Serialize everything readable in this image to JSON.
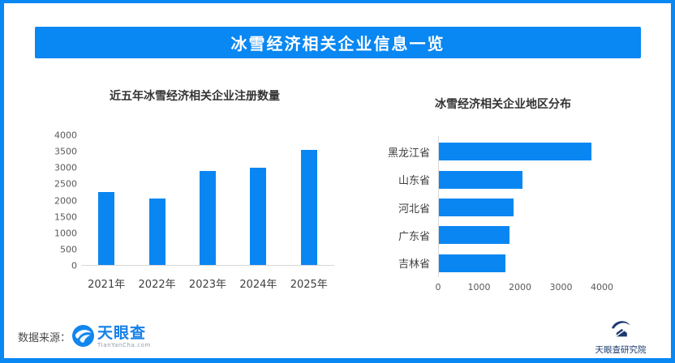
{
  "header": {
    "title": "冰雪经济相关企业信息一览"
  },
  "chart_data": [
    {
      "type": "bar",
      "title": "近五年冰雪经济相关企业注册数量",
      "categories": [
        "2021年",
        "2022年",
        "2023年",
        "2024年",
        "2025年"
      ],
      "values": [
        2250,
        2050,
        2900,
        3000,
        3550
      ],
      "xlabel": "",
      "ylabel": "",
      "ylim": [
        0,
        4000
      ],
      "yticks": [
        0,
        500,
        1000,
        1500,
        2000,
        2500,
        3000,
        3500,
        4000
      ],
      "grid": false,
      "legend": "none",
      "bar_color": "#0a86f2"
    },
    {
      "type": "bar-horizontal",
      "title": "冰雪经济相关企业地区分布",
      "categories": [
        "黑龙江省",
        "山东省",
        "河北省",
        "广东省",
        "吉林省"
      ],
      "values": [
        3750,
        2050,
        1850,
        1750,
        1650
      ],
      "xlabel": "",
      "ylabel": "",
      "xlim": [
        0,
        4000
      ],
      "xticks": [
        0,
        1000,
        2000,
        3000,
        4000
      ],
      "grid": false,
      "legend": "none",
      "bar_color": "#0a86f2"
    }
  ],
  "footer": {
    "source_label": "数据来源：",
    "tianyancha": {
      "name": "天眼查",
      "domain": "TianYanCha.com"
    },
    "research_institute": "天眼查研究院"
  },
  "colors": {
    "primary_blue": "#0987f2",
    "bar_blue": "#0a86f2",
    "axis_line": "#d9d9d9",
    "chart_title_text": "#333333",
    "tick_text": "#595959",
    "tianyancha_blue": "#1581e8",
    "logo_navy": "#1d3a70"
  }
}
